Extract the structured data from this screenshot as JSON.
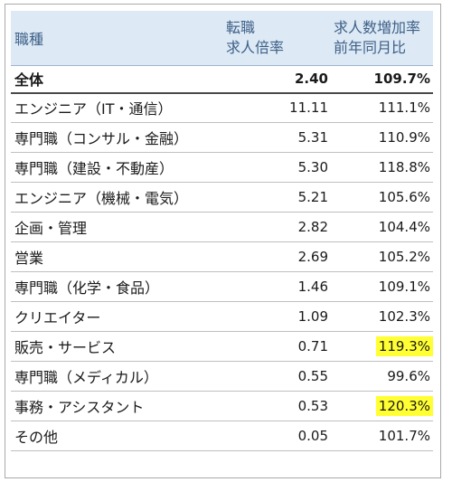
{
  "header": {
    "col1": "職種",
    "col2_line1": "転職",
    "col2_line2": "求人倍率",
    "col3_line1": "求人数増加率",
    "col3_line2": "前年同月比"
  },
  "total": {
    "name": "全体",
    "ratio": "2.40",
    "growth": "109.7%"
  },
  "rows": [
    {
      "name": "エンジニア（IT・通信）",
      "ratio": "11.11",
      "growth": "111.1%",
      "highlight": false
    },
    {
      "name": "専門職（コンサル・金融）",
      "ratio": "5.31",
      "growth": "110.9%",
      "highlight": false
    },
    {
      "name": "専門職（建設・不動産）",
      "ratio": "5.30",
      "growth": "118.8%",
      "highlight": false
    },
    {
      "name": "エンジニア（機械・電気）",
      "ratio": "5.21",
      "growth": "105.6%",
      "highlight": false
    },
    {
      "name": "企画・管理",
      "ratio": "2.82",
      "growth": "104.4%",
      "highlight": false
    },
    {
      "name": "営業",
      "ratio": "2.69",
      "growth": "105.2%",
      "highlight": false
    },
    {
      "name": "専門職（化学・食品）",
      "ratio": "1.46",
      "growth": "109.1%",
      "highlight": false
    },
    {
      "name": "クリエイター",
      "ratio": "1.09",
      "growth": "102.3%",
      "highlight": false
    },
    {
      "name": "販売・サービス",
      "ratio": "0.71",
      "growth": "119.3%",
      "highlight": true
    },
    {
      "name": "専門職（メディカル）",
      "ratio": "0.55",
      "growth": "99.6%",
      "highlight": false
    },
    {
      "name": "事務・アシスタント",
      "ratio": "0.53",
      "growth": "120.3%",
      "highlight": true
    },
    {
      "name": "その他",
      "ratio": "0.05",
      "growth": "101.7%",
      "highlight": false
    }
  ],
  "colors": {
    "header_bg": "#ddeaf6",
    "header_text": "#3e5f86",
    "highlight": "#ffff33"
  }
}
